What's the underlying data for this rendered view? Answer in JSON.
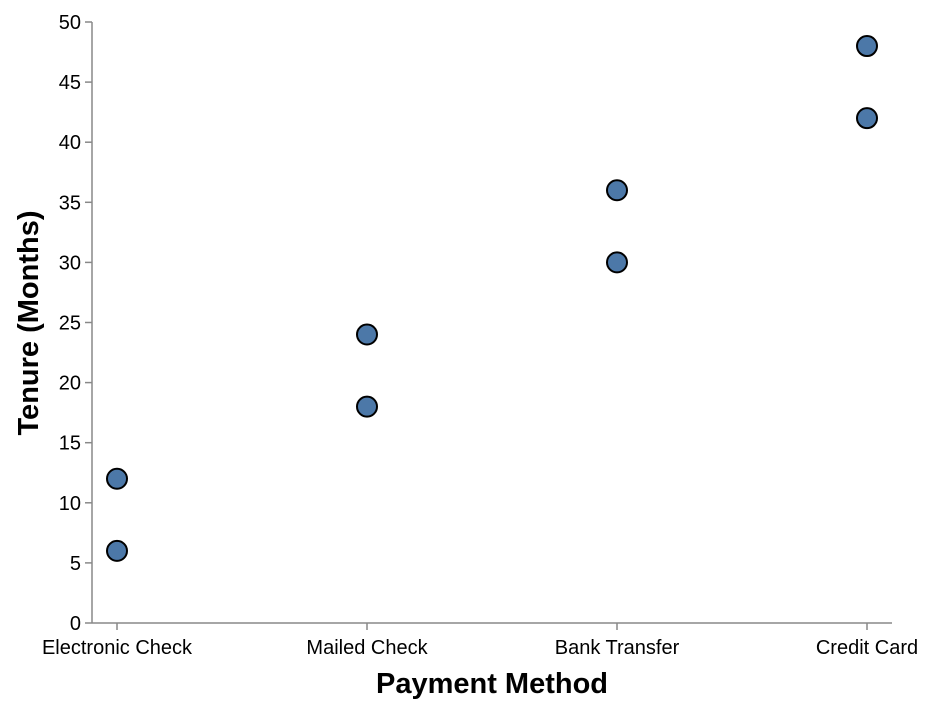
{
  "chart_data": {
    "type": "scatter",
    "title": "",
    "xlabel": "Payment Method",
    "ylabel": "Tenure (Months)",
    "categories": [
      "Electronic Check",
      "Mailed Check",
      "Bank Transfer",
      "Credit Card"
    ],
    "points": [
      {
        "x": "Electronic Check",
        "y": 6
      },
      {
        "x": "Electronic Check",
        "y": 12
      },
      {
        "x": "Mailed Check",
        "y": 18
      },
      {
        "x": "Mailed Check",
        "y": 24
      },
      {
        "x": "Bank Transfer",
        "y": 30
      },
      {
        "x": "Bank Transfer",
        "y": 36
      },
      {
        "x": "Credit Card",
        "y": 42
      },
      {
        "x": "Credit Card",
        "y": 48
      }
    ],
    "ylim": [
      0,
      50
    ],
    "yticks": [
      0,
      5,
      10,
      15,
      20,
      25,
      30,
      35,
      40,
      45,
      50
    ],
    "grid": false,
    "colors": {
      "point_fill": "#4c78a8",
      "point_stroke": "#000000",
      "axis": "#888888"
    }
  }
}
